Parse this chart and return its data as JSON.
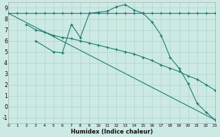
{
  "xlabel": "Humidex (Indice chaleur)",
  "background_color": "#cce9e4",
  "grid_color": "#b0d8d0",
  "line_color": "#1a7a6e",
  "xlim": [
    0,
    23
  ],
  "ylim": [
    -1.5,
    9.5
  ],
  "xticks": [
    0,
    1,
    2,
    3,
    4,
    5,
    6,
    7,
    8,
    9,
    10,
    11,
    12,
    13,
    14,
    15,
    16,
    17,
    18,
    19,
    20,
    21,
    22,
    23
  ],
  "yticks": [
    -1,
    0,
    1,
    2,
    3,
    4,
    5,
    6,
    7,
    8,
    9
  ],
  "line1_x": [
    0,
    1,
    2,
    3,
    4,
    5,
    6,
    7,
    8,
    9,
    10,
    11,
    12,
    13,
    14,
    15,
    16,
    17,
    18,
    19,
    20,
    21,
    22,
    23
  ],
  "line1_y": [
    8.5,
    8.5,
    8.5,
    8.5,
    8.5,
    8.5,
    8.5,
    8.5,
    8.5,
    8.5,
    8.6,
    8.7,
    9.1,
    9.3,
    8.8,
    8.5,
    7.7,
    6.5,
    4.5,
    3.5,
    2.1,
    0.3,
    -0.5,
    -1.2
  ],
  "line2_x": [
    2,
    3,
    4,
    5,
    6,
    7,
    8,
    9,
    10,
    11,
    12,
    13,
    14,
    15,
    16,
    17,
    18,
    19,
    20,
    21,
    22,
    23
  ],
  "line2_y": [
    7.5,
    7.0,
    6.8,
    6.5,
    6.3,
    6.2,
    6.0,
    5.8,
    5.6,
    5.4,
    5.2,
    5.0,
    4.8,
    4.5,
    4.2,
    3.8,
    3.5,
    3.2,
    2.8,
    2.5,
    2.0,
    1.5
  ],
  "line3_x": [
    3,
    5,
    6,
    7,
    8,
    9,
    10,
    11,
    12,
    13,
    14,
    15,
    16,
    17,
    18,
    19,
    20,
    21,
    22,
    23
  ],
  "line3_y": [
    6.0,
    5.0,
    4.9,
    7.5,
    6.3,
    8.5,
    8.5,
    8.5,
    8.5,
    8.5,
    8.5,
    8.5,
    8.5,
    8.5,
    8.5,
    8.5,
    8.5,
    8.5,
    8.5,
    8.5
  ],
  "line4_x": [
    0,
    23
  ],
  "line4_y": [
    8.5,
    -1.2
  ]
}
